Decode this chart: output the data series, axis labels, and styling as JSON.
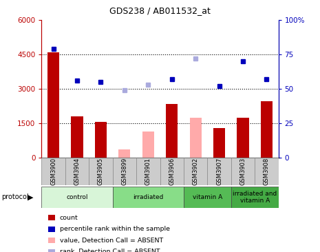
{
  "title": "GDS238 / AB011532_at",
  "samples": [
    "GSM3900",
    "GSM3904",
    "GSM3905",
    "GSM3899",
    "GSM3901",
    "GSM3906",
    "GSM3902",
    "GSM3907",
    "GSM3903",
    "GSM3908"
  ],
  "bar_values": [
    4600,
    1800,
    1550,
    null,
    null,
    2350,
    null,
    1300,
    1750,
    2450
  ],
  "bar_absent_values": [
    null,
    null,
    null,
    350,
    1150,
    null,
    1750,
    null,
    null,
    null
  ],
  "rank_pct": [
    79,
    56,
    55,
    null,
    null,
    57,
    null,
    52,
    70,
    57
  ],
  "rank_absent_pct": [
    null,
    null,
    null,
    49,
    53,
    null,
    72,
    null,
    null,
    null
  ],
  "bar_color": "#bb0000",
  "bar_absent_color": "#ffaaaa",
  "rank_color": "#0000bb",
  "rank_absent_color": "#aaaadd",
  "protocols": [
    {
      "label": "control",
      "start": 0,
      "end": 3,
      "color": "#d8f5d8"
    },
    {
      "label": "irradiated",
      "start": 3,
      "end": 6,
      "color": "#88dd88"
    },
    {
      "label": "vitamin A",
      "start": 6,
      "end": 8,
      "color": "#55bb55"
    },
    {
      "label": "irradiated and\nvitamin A",
      "start": 8,
      "end": 10,
      "color": "#44aa44"
    }
  ],
  "ylim_left": [
    0,
    6000
  ],
  "ylim_right": [
    0,
    100
  ],
  "yticks_left": [
    0,
    1500,
    3000,
    4500,
    6000
  ],
  "ytick_labels_left": [
    "0",
    "1500",
    "3000",
    "4500",
    "6000"
  ],
  "yticks_right": [
    0,
    25,
    50,
    75,
    100
  ],
  "ytick_labels_right": [
    "0",
    "25",
    "50",
    "75",
    "100%"
  ],
  "legend_items": [
    {
      "color": "#bb0000",
      "label": "count"
    },
    {
      "color": "#0000bb",
      "label": "percentile rank within the sample"
    },
    {
      "color": "#ffaaaa",
      "label": "value, Detection Call = ABSENT"
    },
    {
      "color": "#aaaadd",
      "label": "rank, Detection Call = ABSENT"
    }
  ]
}
